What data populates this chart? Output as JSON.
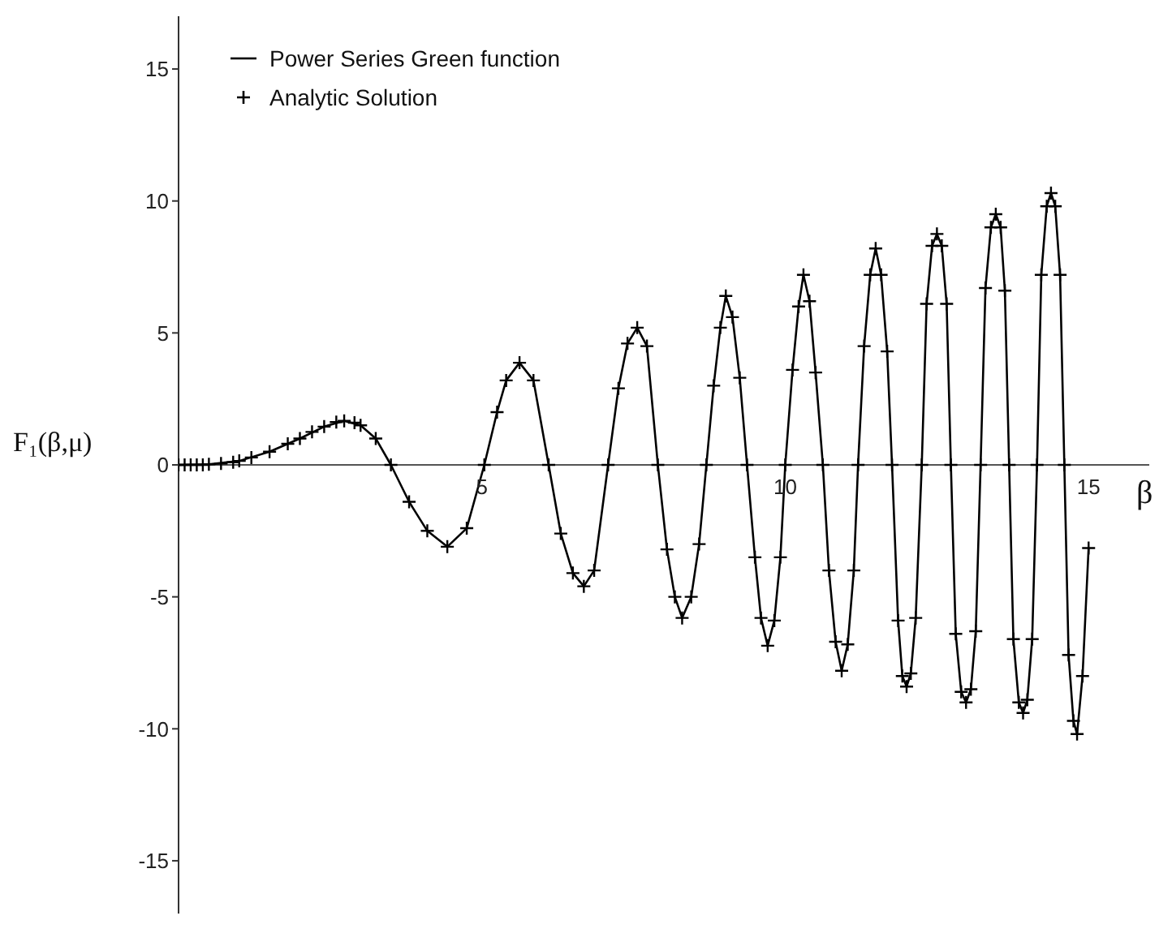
{
  "chart_data": {
    "type": "line",
    "xlabel": "β",
    "ylabel": "F₁(β,μ)",
    "xlim": [
      0,
      16
    ],
    "ylim": [
      -17,
      17
    ],
    "xticks": [
      5,
      10,
      15
    ],
    "yticks": [
      -15,
      -10,
      -5,
      0,
      5,
      10,
      15
    ],
    "grid": false,
    "legend": "top left",
    "series": [
      {
        "name": "Power Series Green function",
        "color": "#000000",
        "marker": "none",
        "line_style": "solid",
        "x": [
          0,
          0.5,
          1.0,
          1.5,
          2.0,
          2.4,
          2.73,
          3.0,
          3.25,
          3.5,
          3.8,
          4.1,
          4.43,
          4.75,
          5.04,
          5.25,
          5.4,
          5.62,
          5.85,
          6.1,
          6.3,
          6.5,
          6.68,
          6.85,
          7.08,
          7.25,
          7.4,
          7.56,
          7.72,
          7.9,
          8.05,
          8.18,
          8.3,
          8.45,
          8.58,
          8.7,
          8.82,
          8.93,
          9.02,
          9.13,
          9.25,
          9.37,
          9.5,
          9.6,
          9.71,
          9.82,
          9.92,
          10.0,
          10.12,
          10.22,
          10.3,
          10.4,
          10.5,
          10.62,
          10.72,
          10.83,
          10.93,
          11.03,
          11.13,
          11.2,
          11.3,
          11.4,
          11.49,
          11.58,
          11.68,
          11.76,
          11.86,
          11.93,
          12.0,
          12.07,
          12.15,
          12.25,
          12.33,
          12.42,
          12.5,
          12.58,
          12.66,
          12.73,
          12.81,
          12.9,
          12.98,
          13.06,
          13.14,
          13.22,
          13.3,
          13.39,
          13.47,
          13.55,
          13.62,
          13.69,
          13.76,
          13.85,
          13.92,
          13.99,
          14.07,
          14.15,
          14.22,
          14.31,
          14.38,
          14.45,
          14.53,
          14.6,
          14.67,
          14.75,
          14.81,
          14.9,
          15.0
        ],
        "values": [
          0,
          0.02,
          0.15,
          0.5,
          1.0,
          1.45,
          1.67,
          1.5,
          1.0,
          0,
          -1.4,
          -2.5,
          -3.1,
          -2.4,
          0,
          2.0,
          3.2,
          3.87,
          3.2,
          0,
          -2.6,
          -4.1,
          -4.6,
          -4.0,
          0,
          2.9,
          4.6,
          5.2,
          4.5,
          0,
          -3.2,
          -5.0,
          -5.8,
          -5.0,
          -3.0,
          0,
          3.0,
          5.2,
          6.4,
          5.6,
          3.3,
          0,
          -3.5,
          -5.8,
          -6.85,
          -5.9,
          -3.5,
          0,
          3.6,
          6.0,
          7.2,
          6.2,
          3.5,
          0,
          -4.0,
          -6.7,
          -7.8,
          -6.8,
          -4.0,
          0,
          4.5,
          7.2,
          8.2,
          7.2,
          4.3,
          0,
          -5.9,
          -8.0,
          -8.4,
          -7.9,
          -5.8,
          0,
          6.1,
          8.3,
          8.75,
          8.3,
          6.1,
          0,
          -6.4,
          -8.6,
          -9.0,
          -8.5,
          -6.3,
          0,
          6.7,
          9.0,
          9.5,
          9.0,
          6.6,
          0,
          -6.6,
          -9.0,
          -9.4,
          -8.9,
          -6.6,
          0,
          7.2,
          9.8,
          10.3,
          9.8,
          7.2,
          0,
          -7.2,
          -9.7,
          -10.2,
          -8.0,
          -3.15
        ]
      },
      {
        "name": "Analytic Solution",
        "type": "scatter",
        "color": "#000000",
        "marker": "cross",
        "x": [
          0,
          0.1,
          0.2,
          0.3,
          0.4,
          0.5,
          0.7,
          0.9,
          1.0,
          1.2,
          1.5,
          1.8,
          2.0,
          2.2,
          2.4,
          2.6,
          2.73,
          2.9,
          3.0,
          3.25,
          3.5,
          3.8,
          4.1,
          4.43,
          4.75,
          5.04,
          5.25,
          5.4,
          5.62,
          5.85,
          6.1,
          6.3,
          6.5,
          6.68,
          6.85,
          7.08,
          7.25,
          7.4,
          7.56,
          7.72,
          7.9,
          8.05,
          8.18,
          8.3,
          8.45,
          8.58,
          8.7,
          8.82,
          8.93,
          9.02,
          9.13,
          9.25,
          9.37,
          9.5,
          9.6,
          9.71,
          9.82,
          9.92,
          10.0,
          10.12,
          10.22,
          10.3,
          10.4,
          10.5,
          10.62,
          10.72,
          10.83,
          10.93,
          11.03,
          11.13,
          11.2,
          11.3,
          11.4,
          11.49,
          11.58,
          11.68,
          11.76,
          11.86,
          11.93,
          12.0,
          12.07,
          12.15,
          12.25,
          12.33,
          12.42,
          12.5,
          12.58,
          12.66,
          12.73,
          12.81,
          12.9,
          12.98,
          13.06,
          13.14,
          13.22,
          13.3,
          13.39,
          13.47,
          13.55,
          13.62,
          13.69,
          13.76,
          13.85,
          13.92,
          13.99,
          14.07,
          14.15,
          14.22,
          14.31,
          14.38,
          14.45,
          14.53,
          14.6,
          14.67,
          14.75,
          14.81,
          14.9,
          15.0
        ],
        "values": [
          0,
          0,
          0,
          0,
          0,
          0.02,
          0.05,
          0.1,
          0.15,
          0.28,
          0.5,
          0.8,
          1.0,
          1.25,
          1.45,
          1.62,
          1.67,
          1.6,
          1.5,
          1.0,
          0,
          -1.4,
          -2.5,
          -3.1,
          -2.4,
          0,
          2.0,
          3.2,
          3.87,
          3.2,
          0,
          -2.6,
          -4.1,
          -4.6,
          -4.0,
          0,
          2.9,
          4.6,
          5.2,
          4.5,
          0,
          -3.2,
          -5.0,
          -5.8,
          -5.0,
          -3.0,
          0,
          3.0,
          5.2,
          6.4,
          5.6,
          3.3,
          0,
          -3.5,
          -5.8,
          -6.85,
          -5.9,
          -3.5,
          0,
          3.6,
          6.0,
          7.2,
          6.2,
          3.5,
          0,
          -4.0,
          -6.7,
          -7.8,
          -6.8,
          -4.0,
          0,
          4.5,
          7.2,
          8.2,
          7.2,
          4.3,
          0,
          -5.9,
          -8.0,
          -8.4,
          -7.9,
          -5.8,
          0,
          6.1,
          8.3,
          8.75,
          8.3,
          6.1,
          0,
          -6.4,
          -8.6,
          -9.0,
          -8.5,
          -6.3,
          0,
          6.7,
          9.0,
          9.5,
          9.0,
          6.6,
          0,
          -6.6,
          -9.0,
          -9.4,
          -8.9,
          -6.6,
          0,
          7.2,
          9.8,
          10.3,
          9.8,
          7.2,
          0,
          -7.2,
          -9.7,
          -10.2,
          -8.0,
          -3.15
        ]
      }
    ]
  }
}
